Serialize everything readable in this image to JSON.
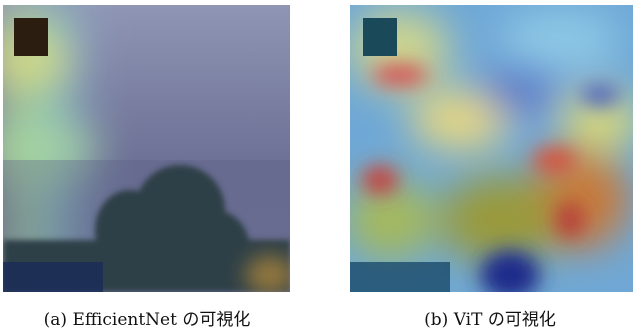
{
  "figures": [
    {
      "caption": "(a) EfficientNet の可視化"
    },
    {
      "caption": "(b) ViT の可視化"
    }
  ]
}
